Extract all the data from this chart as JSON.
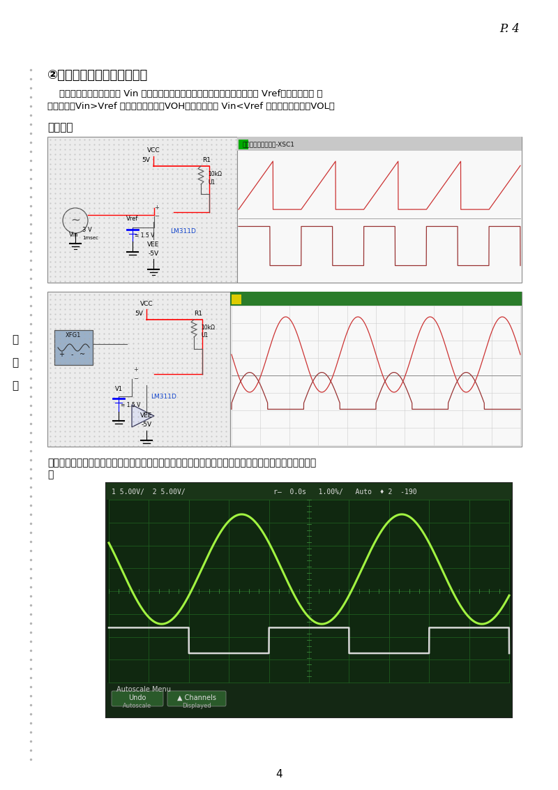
{
  "page_num": "P. 4",
  "page_footer": "4",
  "title": "②《基本单门限比较器电路》",
  "line1": "    单门限比较器的输入信号 Vin 接比较器的同相输入端，反相输入端接参考电压 Vref（门限电平） 。",
  "line2": "当输入电压Vin>Vref 时，输出为高电平VOH；当输入电压 Vin<Vref 时，输出为乎电平VOL。",
  "section_sim": "实验仿真",
  "exp_record_line1": "实验记录（由于实验室没有如仿真第一幅图的输入信号，故在实验时用正弦信号代替，并做仿真如上所示",
  "exp_record_line2": "）",
  "side1": "装",
  "side2": "订",
  "side3": "线",
  "bg": "#ffffff"
}
